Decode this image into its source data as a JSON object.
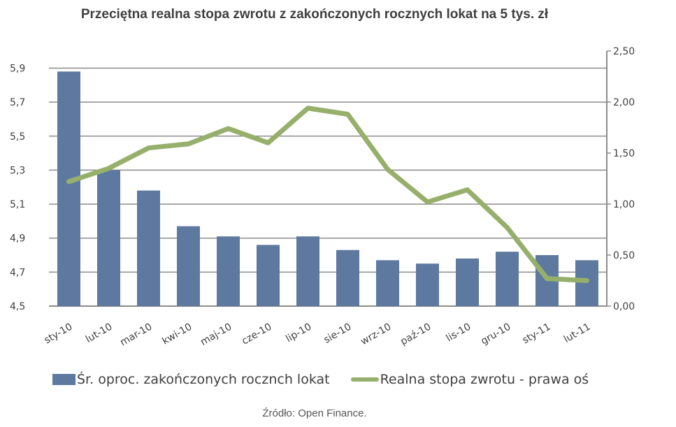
{
  "title": "Przeciętna realna stopa zwrotu z zakończonych rocznych lokat na 5 tys. zł",
  "source": "Źródło: Open Finance.",
  "colors": {
    "bar": "#5e79a0",
    "line": "#96b06c",
    "grid": "#8c8c8c",
    "axis": "#8c8c8c",
    "text": "#404040"
  },
  "legend": [
    {
      "label": "Śr. oproc. zakończonych rocznch lokat",
      "type": "bar"
    },
    {
      "label": "Realna stopa zwrotu - prawa oś",
      "type": "line"
    }
  ],
  "chart_data": {
    "type": "bar",
    "title": "Przeciętna realna stopa zwrotu z zakończonych rocznych lokat na 5 tys. zł",
    "categories": [
      "sty-10",
      "lut-10",
      "mar-10",
      "kwi-10",
      "maj-10",
      "cze-10",
      "lip-10",
      "sie-10",
      "wrz-10",
      "paź-10",
      "lis-10",
      "gru-10",
      "sty-11",
      "lut-11"
    ],
    "series": [
      {
        "name": "Śr. oproc. zakończonych rocznch lokat",
        "type": "bar",
        "axis": "left",
        "values": [
          5.88,
          5.3,
          5.18,
          4.97,
          4.91,
          4.86,
          4.91,
          4.83,
          4.77,
          4.75,
          4.78,
          4.82,
          4.8,
          4.77
        ]
      },
      {
        "name": "Realna stopa zwrotu - prawa oś",
        "type": "line",
        "axis": "right",
        "values": [
          1.22,
          1.35,
          1.55,
          1.59,
          1.74,
          1.6,
          1.94,
          1.88,
          1.34,
          1.02,
          1.14,
          0.77,
          0.27,
          0.25
        ]
      }
    ],
    "left_axis": {
      "ylim": [
        4.5,
        5.9
      ],
      "ticks": [
        "4,5",
        "4,7",
        "4,9",
        "5,1",
        "5,3",
        "5,5",
        "5,7",
        "5,9"
      ]
    },
    "right_axis": {
      "ylim": [
        0,
        2.5
      ],
      "ticks": [
        "0,00",
        "0,50",
        "1,00",
        "1,50",
        "2,00",
        "2,50"
      ]
    },
    "xlabel": "",
    "ylabel": "",
    "grid": true,
    "legend_position": "bottom"
  }
}
